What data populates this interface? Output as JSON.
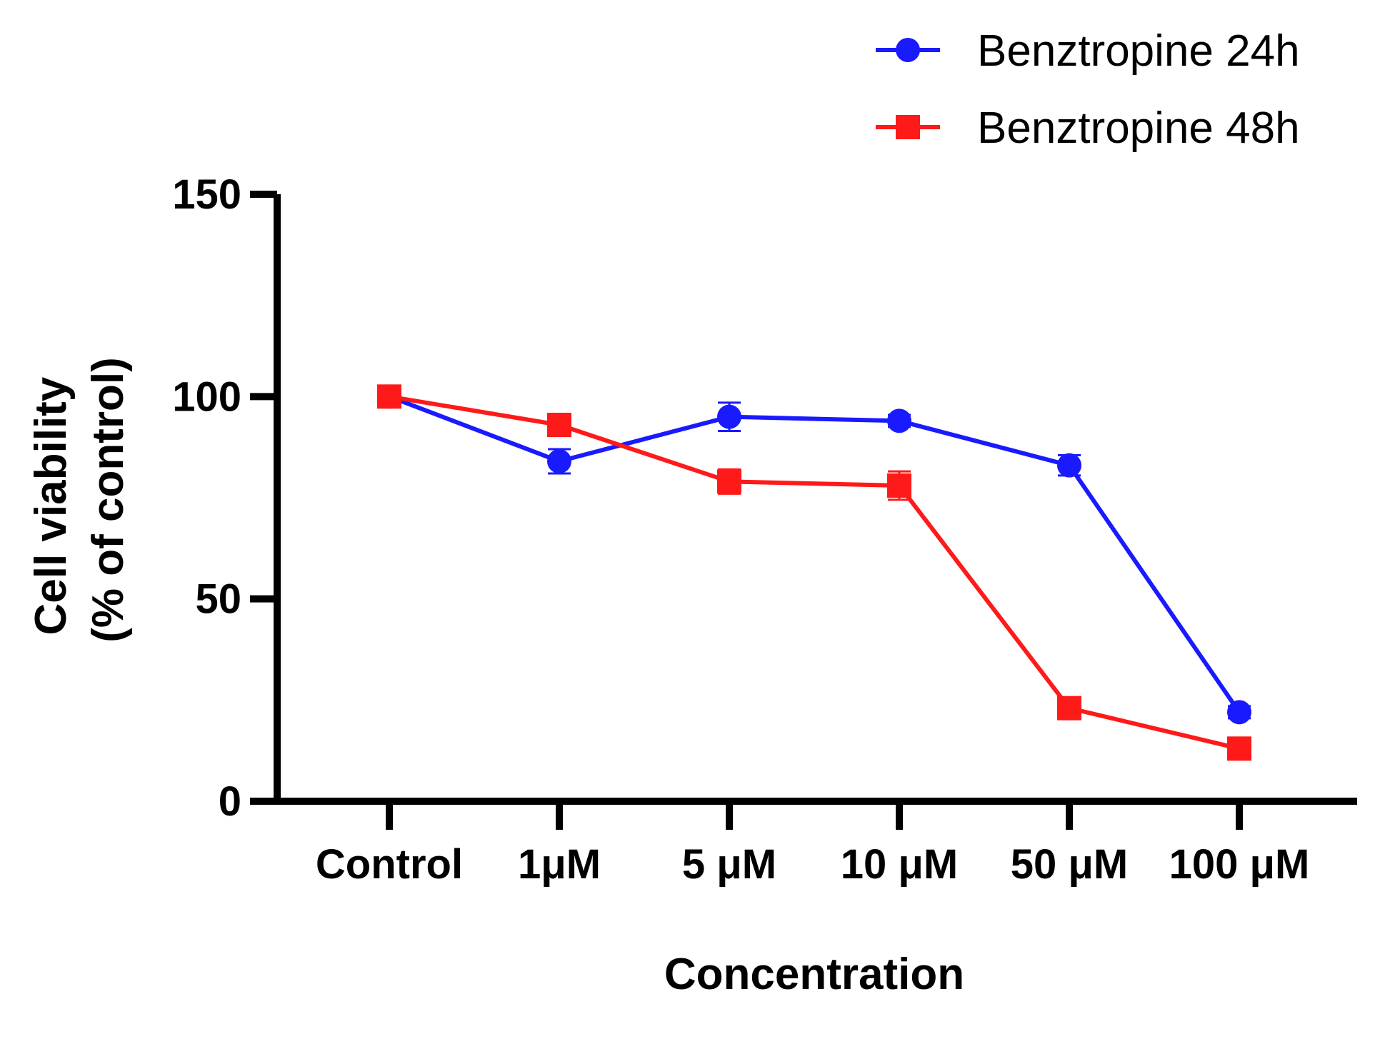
{
  "chart_data": {
    "type": "line",
    "title": "",
    "xlabel": "Concentration",
    "ylabel_lines": [
      "Cell viability",
      "(% of control)"
    ],
    "categories": [
      "Control",
      "1μM",
      "5 μM",
      "10 μM",
      "50 μM",
      "100 μM"
    ],
    "ylim": [
      0,
      150
    ],
    "yticks": [
      0,
      50,
      100,
      150
    ],
    "yticklabels": [
      "0",
      "50",
      "100",
      "150"
    ],
    "grid": false,
    "legend_position": "top-right",
    "series": [
      {
        "name": "Benztropine 24h",
        "color": "#1a1aff",
        "marker": "circle",
        "values": [
          100,
          84,
          95,
          94,
          83,
          22
        ],
        "errors": [
          1.2,
          3,
          3.5,
          1.5,
          2.5,
          1.5
        ]
      },
      {
        "name": "Benztropine 48h",
        "color": "#ff1a1a",
        "marker": "square",
        "values": [
          100,
          93,
          79,
          78,
          23,
          13
        ],
        "errors": [
          1.2,
          1.5,
          3,
          3.5,
          1.5,
          1.0
        ]
      }
    ]
  }
}
